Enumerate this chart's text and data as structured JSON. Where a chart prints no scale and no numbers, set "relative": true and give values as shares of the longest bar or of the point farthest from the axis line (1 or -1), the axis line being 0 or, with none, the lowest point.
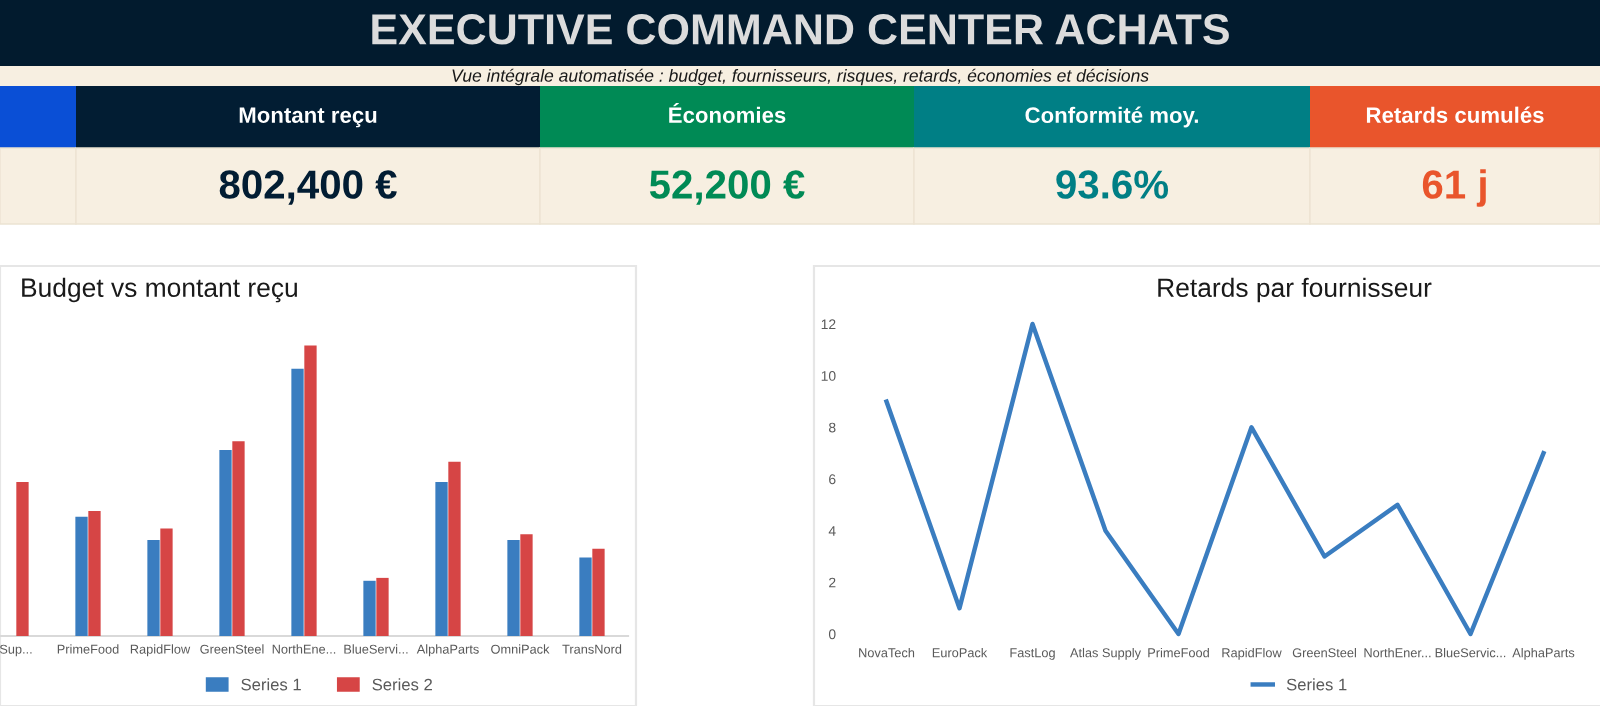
{
  "chart_data": [
    {
      "type": "other",
      "title": "EXECUTIVE COMMAND CENTER ACHATS",
      "subtitle": "Vue intégrale automatisée : budget, fournisseurs, risques, retards, économies et décisions",
      "categories": [
        null,
        "Montant reçu",
        "Économies",
        "Conformité moy.",
        "Retards cumulés"
      ],
      "value_labels": [
        null,
        "802,400 €",
        "52,200 €",
        "93.6%",
        "61 j"
      ],
      "colors": [
        "#0a4fd6",
        "#021d33",
        "#008a55",
        "#007f85",
        "#e9552c"
      ]
    },
    {
      "type": "bar",
      "title": "Budget vs montant reçu",
      "relative": true,
      "legend": "bottom",
      "categories": [
        "Sup...",
        "PrimeFood",
        "RapidFlow",
        "GreenSteel",
        "NorthEne...",
        "BlueServi...",
        "AlphaParts",
        "OmniPack",
        "TransNord"
      ],
      "series": [
        {
          "name": "Series 1",
          "color": "#3a7dc0",
          "values": [
            null,
            0.41,
            0.33,
            0.64,
            0.92,
            0.19,
            0.53,
            0.33,
            0.27
          ]
        },
        {
          "name": "Series 2",
          "color": "#d64545",
          "values": [
            0.53,
            0.43,
            0.37,
            0.67,
            1.0,
            0.2,
            0.6,
            0.35,
            0.3
          ]
        }
      ]
    },
    {
      "type": "line",
      "title": "Retards par fournisseur",
      "legend": "bottom",
      "ylim": [
        0,
        12
      ],
      "yticks": [
        0,
        2,
        4,
        6,
        8,
        10,
        12
      ],
      "categories": [
        "NovaTech",
        "EuroPack",
        "FastLog",
        "Atlas Supply",
        "PrimeFood",
        "RapidFlow",
        "GreenSteel",
        "NorthEner...",
        "BlueServic...",
        "AlphaParts"
      ],
      "series": [
        {
          "name": "Series 1",
          "color": "#3a7dc0",
          "values": [
            9,
            1,
            12,
            4,
            0,
            8,
            3,
            5,
            0,
            7
          ]
        }
      ]
    }
  ]
}
